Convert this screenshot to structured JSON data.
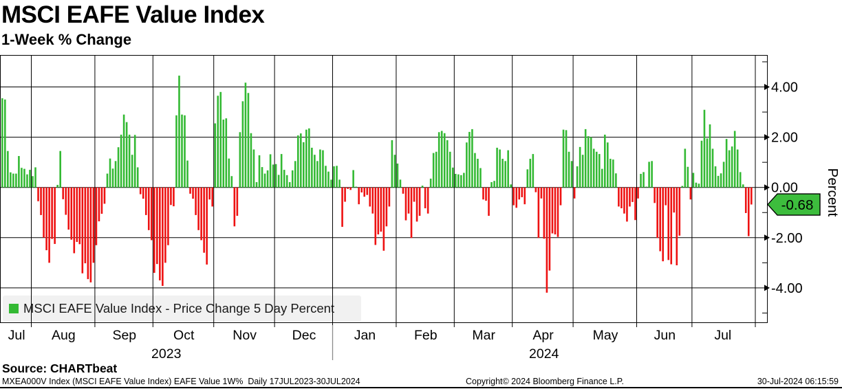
{
  "header": {
    "title": "MSCI EAFE Value Index",
    "subtitle": "1-Week % Change"
  },
  "legend": {
    "swatch_color": "#33b933",
    "label": "MSCI EAFE Value Index - Price Change 5 Day Percent"
  },
  "source": {
    "label": "Source: CHARTbeat"
  },
  "footer": {
    "left": "MXEA000V Index (MSCI EAFE Value Index) EAFE Value 1W%  Daily 17JUL2023-30JUL2024",
    "center": "Copyright© 2024 Bloomberg Finance L.P.",
    "right": "30-Jul-2024 06:15:59"
  },
  "chart_data": {
    "type": "bar",
    "title": "MSCI EAFE Value Index",
    "subtitle": "1-Week % Change",
    "series_name": "MSCI EAFE Value Index - Price Change 5 Day Percent",
    "period": "Daily 17JUL2023-30JUL2024",
    "ylabel": "Percent",
    "ylim": [
      -5.3,
      5.3
    ],
    "y_ticks_labeled": [
      4,
      2,
      0,
      -2,
      -4
    ],
    "y_tick_labels": [
      "4.00",
      "2.00",
      "0.00",
      "-2.00",
      "-4.00"
    ],
    "y_minor_ticks": [
      5,
      3,
      1,
      -1,
      -3,
      -5
    ],
    "grid": true,
    "legend_position": "bottom-left",
    "bar_color_positive": "#33b933",
    "bar_color_negative": "#ee1111",
    "badge_color": "#3dbd3d",
    "last_value": -0.68,
    "last_value_label": "-0.68",
    "x_axis": {
      "months": [
        {
          "label": "Jul",
          "days": 11
        },
        {
          "label": "Aug",
          "days": 23
        },
        {
          "label": "Sep",
          "days": 21
        },
        {
          "label": "Oct",
          "days": 22
        },
        {
          "label": "Nov",
          "days": 22
        },
        {
          "label": "Dec",
          "days": 21
        },
        {
          "label": "Jan",
          "days": 23
        },
        {
          "label": "Feb",
          "days": 21
        },
        {
          "label": "Mar",
          "days": 21
        },
        {
          "label": "Apr",
          "days": 22
        },
        {
          "label": "May",
          "days": 23
        },
        {
          "label": "Jun",
          "days": 20
        },
        {
          "label": "Jul",
          "days": 22
        }
      ],
      "years": [
        {
          "label": "2023",
          "month_start": 0,
          "month_end": 6
        },
        {
          "label": "2024",
          "month_start": 6,
          "month_end": 13
        }
      ]
    },
    "values": [
      3.55,
      3.5,
      1.45,
      0.6,
      0.55,
      0.55,
      1.25,
      0.78,
      0.74,
      0.52,
      0.7,
      0.45,
      0.8,
      -0.55,
      -1.1,
      -2.0,
      -2.5,
      -3.0,
      -2.05,
      -2.25,
      0.1,
      1.45,
      -0.47,
      -1.09,
      -1.68,
      -2.08,
      -2.62,
      -2.17,
      -2.26,
      -3.42,
      -3.02,
      -3.65,
      -3.78,
      -3.0,
      -2.3,
      -1.35,
      -1.05,
      -0.65,
      0.55,
      1.15,
      0.75,
      1.05,
      1.6,
      2.1,
      2.9,
      2.6,
      2.1,
      1.3,
      2.09,
      0.8,
      -0.27,
      -0.45,
      -1.1,
      -1.7,
      -2.1,
      -3.4,
      -3.05,
      -3.7,
      -3.92,
      -3.0,
      -2.3,
      -0.7,
      -0.75,
      2.87,
      4.45,
      2.9,
      2.87,
      1.07,
      -0.25,
      -0.45,
      -1.1,
      -1.7,
      -2.1,
      -2.6,
      -3.07,
      -0.48,
      -0.76,
      2.55,
      3.65,
      3.8,
      2.7,
      2.75,
      1.15,
      0.45,
      -1.55,
      -1.13,
      2.2,
      3.43,
      4.17,
      3.76,
      2.16,
      1.51,
      0.21,
      1.28,
      0.81,
      0.55,
      0.68,
      1.32,
      0.91,
      0.93,
      0.5,
      1.33,
      0.7,
      0.49,
      0.21,
      0.68,
      1.05,
      2.07,
      2.15,
      1.8,
      2.3,
      2.35,
      1.58,
      1.3,
      1.05,
      1.51,
      1.48,
      0.86,
      0.63,
      0.31,
      0.84,
      0.86,
      0.31,
      -1.57,
      -0.57,
      -0.06,
      -0.1,
      0.69,
      0.03,
      -0.67,
      -0.2,
      -0.37,
      -0.3,
      -0.76,
      -1.04,
      -2.29,
      -1.87,
      -1.76,
      -2.52,
      -1.55,
      -0.76,
      1.88,
      1.3,
      0.95,
      0.31,
      -0.25,
      -1.31,
      -1.04,
      -2.01,
      -0.57,
      -1.36,
      -1.13,
      0.07,
      -0.83,
      -1.04,
      0.35,
      1.37,
      1.42,
      2.2,
      2.25,
      2.16,
      1.88,
      1.42,
      0.79,
      0.54,
      0.52,
      0.49,
      0.58,
      1.79,
      2.21,
      2.32,
      1.37,
      1.14,
      0.77,
      -0.48,
      -0.53,
      -1.13,
      0.21,
      0.26,
      1.58,
      1.51,
      1.14,
      1.05,
      1.48,
      0.12,
      -0.71,
      -0.81,
      -0.48,
      -0.39,
      -0.67,
      0.72,
      1.14,
      1.33,
      -0.19,
      -2.01,
      -0.44,
      -2.04,
      -4.19,
      -3.31,
      -1.83,
      -1.87,
      -1.97,
      -0.71,
      2.3,
      2.28,
      1.42,
      1.05,
      -0.44,
      0.84,
      1.61,
      1.3,
      2.32,
      2.04,
      2.0,
      1.54,
      1.42,
      1.33,
      0.74,
      2.1,
      1.79,
      1.14,
      1.11,
      0.56,
      -0.76,
      -0.83,
      -1.04,
      -1.36,
      -0.76,
      -0.58,
      -1.3,
      -0.44,
      0.54,
      0.61,
      0.03,
      1.02,
      1.05,
      -0.62,
      -2.01,
      -2.54,
      -2.94,
      -0.71,
      -2.89,
      -3.06,
      -1.0,
      -3.1,
      -1.92,
      0.06,
      1.54,
      0.82,
      -0.48,
      0.58,
      0.19,
      0.15,
      1.86,
      3.09,
      1.95,
      2.51,
      1.54,
      0.84,
      0.46,
      0.56,
      1.02,
      1.93,
      1.48,
      1.63,
      2.25,
      1.51,
      0.61,
      0.12,
      -1.02,
      -1.94,
      -0.68
    ]
  }
}
